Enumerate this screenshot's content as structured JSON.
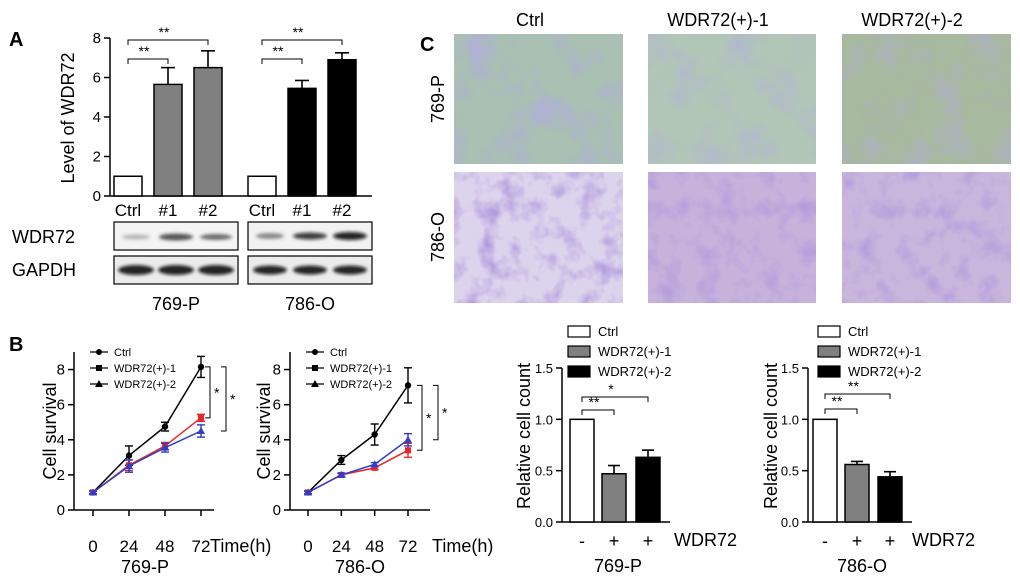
{
  "panel_labels": {
    "a": "A",
    "b": "B",
    "c": "C"
  },
  "western_blot": {
    "bands": [
      "WDR72",
      "GAPDH"
    ],
    "groups": [
      "769-P",
      "786-O"
    ]
  },
  "micrographs": {
    "columns": [
      "Ctrl",
      "WDR72(+)-1",
      "WDR72(+)-2"
    ],
    "rows": [
      "769-P",
      "786-O"
    ]
  },
  "markers": {
    "wdr72": "WDR72",
    "minus": "-",
    "plus": "+"
  },
  "colors": {
    "ctrl": "#000000",
    "wdr72_1": "#e8242c",
    "wdr72_2": "#2f3ec8",
    "gray_bar": "#808080",
    "black_bar": "#000000"
  },
  "chart_data": [
    {
      "id": "a",
      "type": "bar",
      "ylabel": "Level of WDR72",
      "ylim": [
        0,
        8
      ],
      "yticks": [
        0,
        2,
        4,
        6,
        8
      ],
      "groups": [
        {
          "name": "769-P",
          "categories": [
            "Ctrl",
            "#1",
            "#2"
          ],
          "values": [
            1.0,
            5.65,
            6.5
          ],
          "errors": [
            0,
            0.85,
            0.85
          ]
        },
        {
          "name": "786-O",
          "categories": [
            "Ctrl",
            "#1",
            "#2"
          ],
          "values": [
            1.0,
            5.45,
            6.9
          ],
          "errors": [
            0,
            0.4,
            0.35
          ]
        }
      ],
      "significance": [
        {
          "group": 0,
          "from": 0,
          "to": 1,
          "label": "**"
        },
        {
          "group": 0,
          "from": 0,
          "to": 2,
          "label": "**"
        },
        {
          "group": 1,
          "from": 0,
          "to": 1,
          "label": "**"
        },
        {
          "group": 1,
          "from": 0,
          "to": 2,
          "label": "**"
        }
      ]
    },
    {
      "id": "b1",
      "type": "line",
      "title": "769-P",
      "ylabel": "Cell survival",
      "xlabel": "Time(h)",
      "x": [
        0,
        24,
        48,
        72
      ],
      "ylim": [
        0,
        9
      ],
      "yticks": [
        0,
        2,
        4,
        6,
        8
      ],
      "series": [
        {
          "name": "Ctrl",
          "values": [
            1.0,
            3.1,
            4.75,
            8.15
          ],
          "errors": [
            0.08,
            0.55,
            0.25,
            0.6
          ]
        },
        {
          "name": "WDR72(+)-1",
          "values": [
            1.0,
            2.55,
            3.65,
            5.25
          ],
          "errors": [
            0.08,
            0.3,
            0.2,
            0.2
          ]
        },
        {
          "name": "WDR72(+)-2",
          "values": [
            1.0,
            2.5,
            3.55,
            4.5
          ],
          "errors": [
            0.08,
            0.35,
            0.25,
            0.35
          ]
        }
      ],
      "significance": [
        {
          "label": "*"
        },
        {
          "label": "*"
        }
      ]
    },
    {
      "id": "b2",
      "type": "line",
      "title": "786-O",
      "ylabel": "Cell survival",
      "xlabel": "Time(h)",
      "x": [
        0,
        24,
        48,
        72
      ],
      "ylim": [
        0,
        9
      ],
      "yticks": [
        0,
        2,
        4,
        6,
        8
      ],
      "series": [
        {
          "name": "Ctrl",
          "values": [
            1.0,
            2.85,
            4.3,
            7.1
          ],
          "errors": [
            0.08,
            0.25,
            0.6,
            1.0
          ]
        },
        {
          "name": "WDR72(+)-1",
          "values": [
            1.0,
            2.0,
            2.4,
            3.4
          ],
          "errors": [
            0.08,
            0.08,
            0.1,
            0.4
          ]
        },
        {
          "name": "WDR72(+)-2",
          "values": [
            1.0,
            2.0,
            2.6,
            4.0
          ],
          "errors": [
            0.08,
            0.1,
            0.1,
            0.35
          ]
        }
      ],
      "significance": [
        {
          "label": "*"
        },
        {
          "label": "*"
        }
      ]
    },
    {
      "id": "c1",
      "type": "bar",
      "title": "769-P",
      "ylabel": "Relative cell count",
      "ylim": [
        0,
        1.5
      ],
      "yticks": [
        0.0,
        0.5,
        1.0,
        1.5
      ],
      "categories": [
        "Ctrl",
        "WDR72(+)-1",
        "WDR72(+)-2"
      ],
      "values": [
        1.0,
        0.47,
        0.63
      ],
      "errors": [
        0,
        0.08,
        0.07
      ],
      "significance": [
        {
          "from": 0,
          "to": 1,
          "label": "**"
        },
        {
          "from": 0,
          "to": 2,
          "label": "*"
        }
      ]
    },
    {
      "id": "c2",
      "type": "bar",
      "title": "786-O",
      "ylabel": "Relative cell count",
      "ylim": [
        0,
        1.5
      ],
      "yticks": [
        0.0,
        0.5,
        1.0,
        1.5
      ],
      "categories": [
        "Ctrl",
        "WDR72(+)-1",
        "WDR72(+)-2"
      ],
      "values": [
        1.0,
        0.56,
        0.44
      ],
      "errors": [
        0,
        0.03,
        0.05
      ],
      "significance": [
        {
          "from": 0,
          "to": 1,
          "label": "**"
        },
        {
          "from": 0,
          "to": 2,
          "label": "**"
        }
      ]
    }
  ]
}
